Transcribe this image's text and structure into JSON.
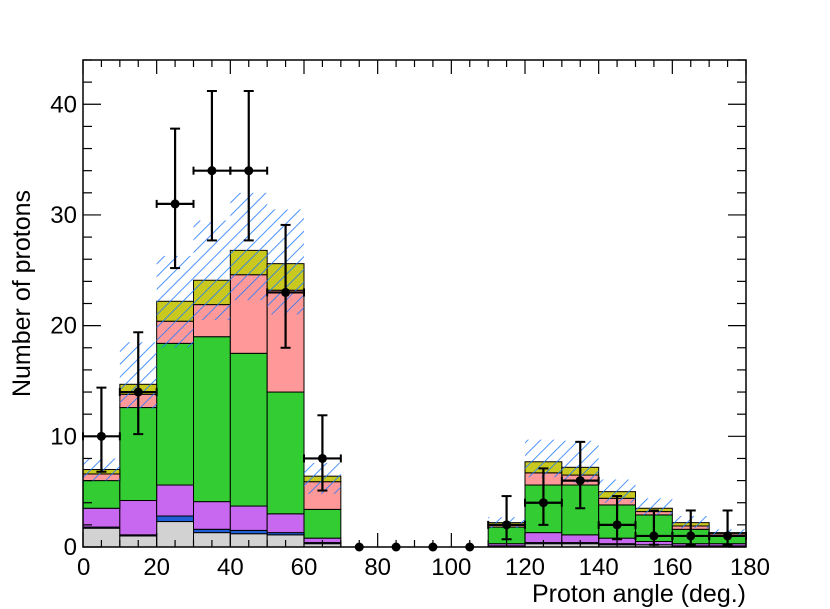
{
  "chart_data": {
    "type": "bar",
    "style": "stacked-histogram-with-data-points",
    "xlabel": "Proton angle (deg.)",
    "ylabel": "Number of protons",
    "xlim": [
      0,
      180
    ],
    "ylim": [
      0,
      44
    ],
    "grid": false,
    "x_tick_labels": [
      "0",
      "20",
      "40",
      "60",
      "80",
      "100",
      "120",
      "140",
      "160",
      "180"
    ],
    "y_tick_labels": [
      "0",
      "10",
      "20",
      "30",
      "40"
    ],
    "bin_edges": [
      0,
      10,
      20,
      30,
      40,
      50,
      60,
      70,
      80,
      90,
      100,
      110,
      120,
      130,
      140,
      150,
      160,
      170,
      180
    ],
    "stack": [
      {
        "color": "#d2d2d2",
        "values": [
          1.7,
          1.0,
          2.3,
          1.3,
          1.2,
          1.1,
          0.3,
          0,
          0,
          0,
          0,
          0.1,
          0.3,
          0.3,
          0.2,
          0.2,
          0.1,
          0.1
        ]
      },
      {
        "color": "#1e5fd6",
        "values": [
          0.1,
          0.1,
          0.5,
          0.3,
          0.3,
          0.2,
          0.1,
          0,
          0,
          0,
          0,
          0,
          0.1,
          0.1,
          0.1,
          0,
          0,
          0
        ]
      },
      {
        "color": "#c867f0",
        "values": [
          1.7,
          3.1,
          2.8,
          2.5,
          2.2,
          1.7,
          0.4,
          0,
          0,
          0,
          0,
          0.2,
          0.9,
          0.7,
          0.5,
          0.3,
          0.2,
          0.2
        ]
      },
      {
        "color": "#33cc33",
        "values": [
          2.5,
          8.4,
          12.8,
          14.9,
          13.8,
          11.0,
          2.6,
          0,
          0,
          0,
          0,
          1.5,
          4.3,
          4.5,
          3.0,
          2.4,
          1.3,
          0.7
        ]
      },
      {
        "color": "#ff9999",
        "values": [
          0.6,
          1.2,
          2.0,
          2.9,
          7.1,
          9.2,
          2.5,
          0,
          0,
          0,
          0,
          0.2,
          1.1,
          0.9,
          0.6,
          0.3,
          0.3,
          0.2
        ]
      },
      {
        "color": "#c8c81e",
        "values": [
          0.4,
          0.9,
          1.8,
          2.2,
          2.2,
          2.4,
          0.5,
          0,
          0,
          0,
          0,
          0.2,
          1.0,
          0.7,
          0.6,
          0.3,
          0.3,
          0.1
        ]
      }
    ],
    "uncertainty_band": {
      "color": "#1e78ff",
      "low": [
        6.0,
        12.5,
        18.0,
        20.5,
        22.3,
        21.0,
        4.8,
        0,
        0,
        0,
        0,
        1.7,
        6.3,
        5.8,
        4.0,
        2.9,
        1.7,
        0.9
      ],
      "high": [
        8.0,
        18.5,
        26.3,
        29.5,
        32.0,
        30.5,
        7.6,
        0,
        0,
        0,
        0,
        2.7,
        9.7,
        9.6,
        6.1,
        4.4,
        2.8,
        1.6
      ]
    },
    "data_points": {
      "color": "#000000",
      "x": [
        5,
        15,
        25,
        35,
        45,
        55,
        65,
        75,
        85,
        95,
        105,
        115,
        125,
        135,
        145,
        155,
        165,
        175
      ],
      "y": [
        10,
        14,
        31,
        34,
        34,
        23,
        8,
        0,
        0,
        0,
        0,
        2,
        4,
        6,
        2,
        1,
        1,
        1
      ],
      "x_err": [
        5,
        5,
        5,
        5,
        5,
        5,
        5,
        0,
        0,
        0,
        0,
        5,
        5,
        5,
        5,
        5,
        5,
        5
      ],
      "y_err_low": [
        3.2,
        3.8,
        5.8,
        6.3,
        6.3,
        5.0,
        2.9,
        0,
        0,
        0,
        0,
        1.3,
        2.0,
        2.5,
        1.3,
        0.8,
        0.8,
        0.8
      ],
      "y_err_high": [
        4.4,
        5.4,
        6.8,
        7.2,
        7.2,
        6.1,
        3.9,
        0,
        0,
        0,
        0,
        2.6,
        3.1,
        3.5,
        2.6,
        2.3,
        2.3,
        2.3
      ]
    }
  }
}
